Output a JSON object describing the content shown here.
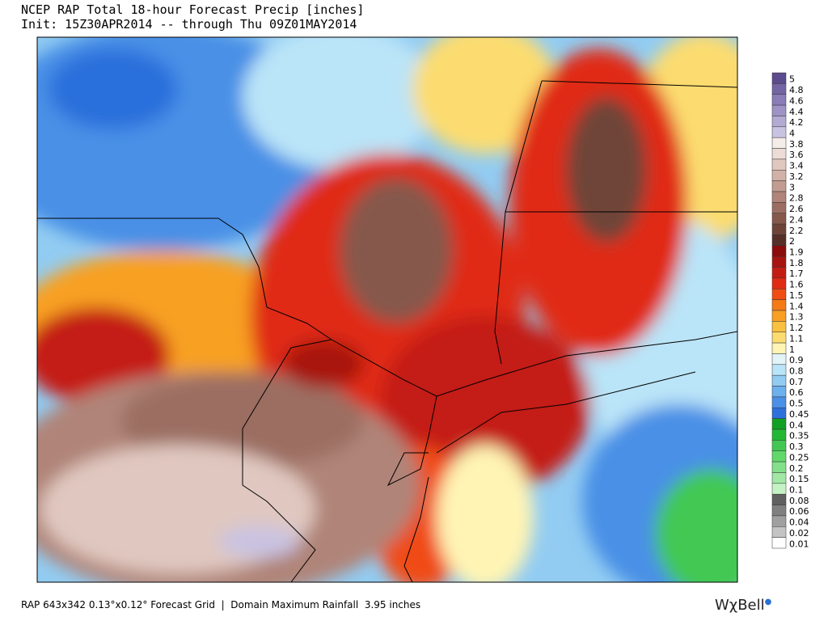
{
  "header": {
    "title": "NCEP RAP Total 18-hour Forecast Precip [inches]",
    "subtitle": "Init: 15Z30APR2014 -- through Thu 09Z01MAY2014"
  },
  "legend": {
    "levels": [
      {
        "label": "5",
        "color": "#5c4b8e"
      },
      {
        "label": "4.8",
        "color": "#7565a4"
      },
      {
        "label": "4.6",
        "color": "#8a7cb6"
      },
      {
        "label": "4.4",
        "color": "#9f93c6"
      },
      {
        "label": "4.2",
        "color": "#b4abd4"
      },
      {
        "label": "4",
        "color": "#c9c3e2"
      },
      {
        "label": "3.8",
        "color": "#f4ece8"
      },
      {
        "label": "3.6",
        "color": "#ecdcd6"
      },
      {
        "label": "3.4",
        "color": "#e0c8c0"
      },
      {
        "label": "3.2",
        "color": "#d2b2a8"
      },
      {
        "label": "3",
        "color": "#c29c90"
      },
      {
        "label": "2.8",
        "color": "#b08478"
      },
      {
        "label": "2.6",
        "color": "#9c6e62"
      },
      {
        "label": "2.4",
        "color": "#86584c"
      },
      {
        "label": "2.2",
        "color": "#6e4438"
      },
      {
        "label": "2",
        "color": "#563026"
      },
      {
        "label": "1.9",
        "color": "#8c0c0c"
      },
      {
        "label": "1.8",
        "color": "#a81410"
      },
      {
        "label": "1.7",
        "color": "#c41e12"
      },
      {
        "label": "1.6",
        "color": "#e02c12"
      },
      {
        "label": "1.5",
        "color": "#f04c14"
      },
      {
        "label": "1.4",
        "color": "#f47a18"
      },
      {
        "label": "1.3",
        "color": "#f8a024"
      },
      {
        "label": "1.2",
        "color": "#fac040"
      },
      {
        "label": "1.1",
        "color": "#fcdc70"
      },
      {
        "label": "1",
        "color": "#fff4b4"
      },
      {
        "label": "0.9",
        "color": "#e2f4f8"
      },
      {
        "label": "0.8",
        "color": "#bae4f8"
      },
      {
        "label": "0.7",
        "color": "#92ccf2"
      },
      {
        "label": "0.6",
        "color": "#6cb0ee"
      },
      {
        "label": "0.5",
        "color": "#4a90e6"
      },
      {
        "label": "0.45",
        "color": "#2c70dc"
      },
      {
        "label": "0.4",
        "color": "#12a024"
      },
      {
        "label": "0.35",
        "color": "#22b834"
      },
      {
        "label": "0.3",
        "color": "#42c852"
      },
      {
        "label": "0.25",
        "color": "#62d86a"
      },
      {
        "label": "0.2",
        "color": "#82e08a"
      },
      {
        "label": "0.15",
        "color": "#a2e8a4"
      },
      {
        "label": "0.1",
        "color": "#c4f2c4"
      },
      {
        "label": "0.08",
        "color": "#606060"
      },
      {
        "label": "0.06",
        "color": "#808080"
      },
      {
        "label": "0.04",
        "color": "#a0a0a0"
      },
      {
        "label": "0.02",
        "color": "#c4c4c4"
      },
      {
        "label": "0.01",
        "color": "#ffffff"
      }
    ]
  },
  "footer": {
    "text": "RAP 643x342 0.13°x0.12° Forecast Grid  |  Domain Maximum Rainfall  3.95 inches",
    "logo": "WχBell"
  }
}
